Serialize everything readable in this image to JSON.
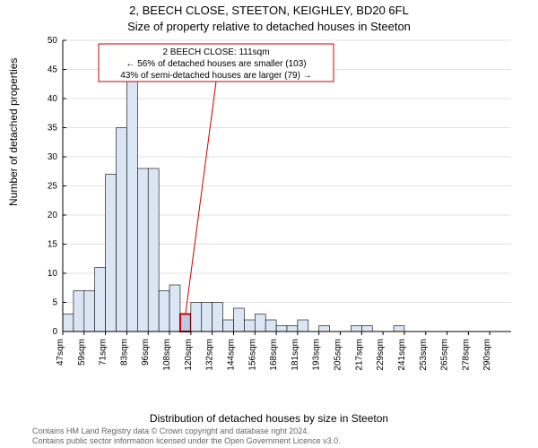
{
  "titles": {
    "line1": "2, BEECH CLOSE, STEETON, KEIGHLEY, BD20 6FL",
    "line2": "Size of property relative to detached houses in Steeton"
  },
  "axes": {
    "ylabel": "Number of detached properties",
    "xlabel": "Distribution of detached houses by size in Steeton",
    "ylim": [
      0,
      50
    ],
    "yticks": [
      0,
      5,
      10,
      15,
      20,
      25,
      30,
      35,
      40,
      45,
      50
    ],
    "xticks_labels": [
      "47sqm",
      "59sqm",
      "71sqm",
      "83sqm",
      "96sqm",
      "108sqm",
      "120sqm",
      "132sqm",
      "144sqm",
      "156sqm",
      "168sqm",
      "181sqm",
      "193sqm",
      "205sqm",
      "217sqm",
      "229sqm",
      "241sqm",
      "253sqm",
      "265sqm",
      "278sqm",
      "290sqm"
    ],
    "label_fontsize": 12,
    "tick_fontsize": 10
  },
  "histogram": {
    "type": "bar",
    "bar_fill": "#dbe6f4",
    "bar_stroke": "#000000",
    "bar_stroke_width": 0.6,
    "values": [
      3,
      7,
      7,
      11,
      27,
      35,
      45,
      28,
      28,
      7,
      8,
      3,
      5,
      5,
      5,
      2,
      4,
      2,
      3,
      2,
      1,
      1,
      2,
      0,
      1,
      0,
      0,
      1,
      1,
      0,
      0,
      1,
      0,
      0,
      0,
      0,
      0,
      0,
      0,
      0,
      0,
      0
    ],
    "highlight_index": 11,
    "highlight_fill": "#b9c9e8",
    "highlight_stroke": "#cc0000",
    "highlight_stroke_width": 2
  },
  "annotation": {
    "line1": "2 BEECH CLOSE: 111sqm",
    "line2": "← 56% of detached houses are smaller (103)",
    "line3": "43% of semi-detached houses are larger (79) →",
    "border_color": "#cc0000",
    "text_color": "#000000",
    "fontsize": 10
  },
  "colors": {
    "axis": "#000000",
    "grid": "#d9d9d9",
    "background": "#ffffff",
    "footer_text": "#666666"
  },
  "footer": {
    "line1": "Contains HM Land Registry data © Crown copyright and database right 2024.",
    "line2": "Contains public sector information licensed under the Open Government Licence v3.0."
  }
}
